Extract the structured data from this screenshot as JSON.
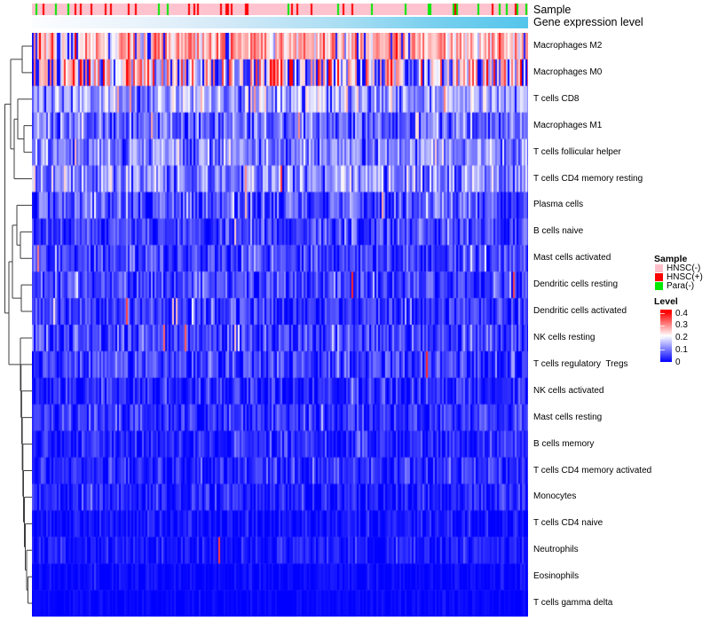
{
  "header": {
    "sample_label": "Sample",
    "expression_label": "Gene expression level"
  },
  "legend": {
    "sample": {
      "title": "Sample",
      "items": [
        {
          "label": "HNSC(-)",
          "color": "#FFC0CB"
        },
        {
          "label": "HNSC(+)",
          "color": "#FF0000"
        },
        {
          "label": "Para(-)",
          "color": "#00E800"
        }
      ]
    },
    "level": {
      "title": "Level",
      "ticks": [
        {
          "label": "0.4",
          "value": 0.4
        },
        {
          "label": "0.3",
          "value": 0.3
        },
        {
          "label": "0.2",
          "value": 0.2
        },
        {
          "label": "0.1",
          "value": 0.1
        },
        {
          "label": "0",
          "value": 0
        }
      ]
    }
  },
  "chart_data": {
    "type": "heatmap",
    "title": "",
    "value_range": [
      0,
      0.4
    ],
    "colorscale": {
      "0": "#0000FF",
      "0.2": "#FFFFFF",
      "0.4": "#FF0000"
    },
    "n_columns_approx": 280,
    "column_annotations": [
      {
        "name": "Sample",
        "categories": [
          {
            "label": "HNSC(-)",
            "color": "#FFC3CF",
            "fraction": 0.845
          },
          {
            "label": "HNSC(+)",
            "color": "#FF0000",
            "fraction": 0.1
          },
          {
            "label": "Para(-)",
            "color": "#00E800",
            "fraction": 0.055
          }
        ]
      },
      {
        "name": "Gene expression level",
        "style": "continuous-gradient",
        "colors": [
          "#FBFDFF",
          "#54C5EB"
        ],
        "direction": "left-to-right increasing"
      }
    ],
    "rows": [
      {
        "label": "Macrophages M2",
        "mean_level": 0.26,
        "sigma": 0.06,
        "spike": 0.015,
        "dip": 0.055
      },
      {
        "label": "Macrophages M0",
        "mean_level": 0.21,
        "sigma": 0.13,
        "spike": 0.04,
        "dip": 0.08
      },
      {
        "label": "T cells CD8",
        "mean_level": 0.13,
        "sigma": 0.05,
        "spike": 0.025,
        "dip": 0.02
      },
      {
        "label": "Macrophages M1",
        "mean_level": 0.085,
        "sigma": 0.05,
        "spike": 0.006,
        "dip": 0
      },
      {
        "label": "T cells follicular helper",
        "mean_level": 0.1,
        "sigma": 0.05,
        "spike": 0.008,
        "dip": 0
      },
      {
        "label": "T cells CD4 memory resting",
        "mean_level": 0.11,
        "sigma": 0.055,
        "spike": 0.012,
        "dip": 0
      },
      {
        "label": "Plasma cells",
        "mean_level": 0.06,
        "sigma": 0.05,
        "spike": 0.008,
        "dip": 0
      },
      {
        "label": "B cells naive",
        "mean_level": 0.05,
        "sigma": 0.04,
        "spike": 0.004,
        "dip": 0
      },
      {
        "label": "Mast cells activated",
        "mean_level": 0.05,
        "sigma": 0.04,
        "spike": 0.003,
        "dip": 0
      },
      {
        "label": "Dendritic cells resting",
        "mean_level": 0.06,
        "sigma": 0.042,
        "spike": 0.003,
        "dip": 0
      },
      {
        "label": "Dendritic cells activated",
        "mean_level": 0.04,
        "sigma": 0.036,
        "spike": 0.004,
        "dip": 0
      },
      {
        "label": "NK cells resting",
        "mean_level": 0.05,
        "sigma": 0.04,
        "spike": 0.007,
        "dip": 0
      },
      {
        "label": "T cells regulatory  Tregs",
        "mean_level": 0.05,
        "sigma": 0.04,
        "spike": 0.002,
        "dip": 0
      },
      {
        "label": "NK cells activated",
        "mean_level": 0.03,
        "sigma": 0.032,
        "spike": 0.001,
        "dip": 0
      },
      {
        "label": "Mast cells resting",
        "mean_level": 0.04,
        "sigma": 0.036,
        "spike": 0.002,
        "dip": 0
      },
      {
        "label": "B cells memory",
        "mean_level": 0.03,
        "sigma": 0.032,
        "spike": 0.003,
        "dip": 0
      },
      {
        "label": "T cells CD4 memory activated",
        "mean_level": 0.03,
        "sigma": 0.03,
        "spike": 0.001,
        "dip": 0
      },
      {
        "label": "Monocytes",
        "mean_level": 0.025,
        "sigma": 0.027,
        "spike": 0.001,
        "dip": 0
      },
      {
        "label": "T cells CD4 naive",
        "mean_level": 0.012,
        "sigma": 0.02,
        "spike": 0.0005,
        "dip": 0
      },
      {
        "label": "Neutrophils",
        "mean_level": 0.02,
        "sigma": 0.024,
        "spike": 0.001,
        "dip": 0
      },
      {
        "label": "Eosinophils",
        "mean_level": 0.006,
        "sigma": 0.012,
        "spike": 0,
        "dip": 0
      },
      {
        "label": "T cells gamma delta",
        "mean_level": 0.004,
        "sigma": 0.009,
        "spike": 0,
        "dip": 0
      }
    ],
    "dendrogram": {
      "orientation": "left",
      "tree": [
        30.5,
        [
          24,
          [
            11,
            0,
            1
          ],
          [
            20,
            [
              16,
              2,
              [
                9,
                3,
                4
              ]
            ],
            5
          ]
        ],
        [
          26,
          [
            22,
            [
              17,
              6,
              [
                13,
                7,
                8
              ]
            ],
            [
              12,
              9,
              10
            ]
          ],
          [
            13,
            11,
            [
              12.3,
              12,
              [
                11.6,
                13,
                [
                  10.9,
                  14,
                  [
                    10.2,
                    15,
                    [
                      9.5,
                      16,
                      [
                        8.5,
                        17,
                        [
                          7.5,
                          18,
                          [
                            6,
                            19,
                            [
                              4.5,
                              20,
                              21
                            ]
                          ]
                        ]
                      ]
                    ]
                  ]
                ]
              ]
            ]
          ]
        ]
      ]
    }
  }
}
